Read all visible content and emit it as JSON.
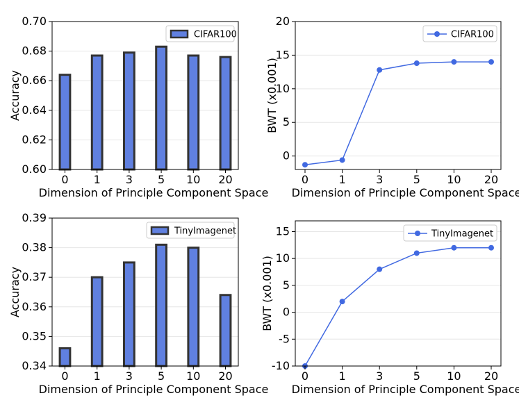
{
  "colors": {
    "fill": "#6080e0",
    "edge": "#333333",
    "line": "#4169e1",
    "grid": "#e6e6e6"
  },
  "chart_data": [
    {
      "type": "bar",
      "categories": [
        "0",
        "1",
        "3",
        "5",
        "10",
        "20"
      ],
      "series": [
        {
          "name": "CIFAR100",
          "values": [
            0.664,
            0.677,
            0.679,
            0.683,
            0.677,
            0.676
          ]
        }
      ],
      "xlabel": "Dimension of Principle Component Space",
      "ylabel": "Accuracy",
      "ylim": [
        0.6,
        0.7
      ],
      "yticks": [
        0.6,
        0.62,
        0.64,
        0.66,
        0.68,
        0.7
      ],
      "ytick_labels": [
        "0.60",
        "0.62",
        "0.64",
        "0.66",
        "0.68",
        "0.70"
      ],
      "legend": "top-right"
    },
    {
      "type": "line",
      "categories": [
        "0",
        "1",
        "3",
        "5",
        "10",
        "20"
      ],
      "series": [
        {
          "name": "CIFAR100",
          "values": [
            -1.3,
            -0.6,
            12.8,
            13.8,
            14.0,
            14.0
          ]
        }
      ],
      "xlabel": "Dimension of Principle Component Space",
      "ylabel": "BWT (x0.001)",
      "ylim": [
        -2,
        20
      ],
      "yticks": [
        0,
        5,
        10,
        15,
        20
      ],
      "ytick_labels": [
        "0",
        "5",
        "10",
        "15",
        "20"
      ],
      "legend": "top-right"
    },
    {
      "type": "bar",
      "categories": [
        "0",
        "1",
        "3",
        "5",
        "10",
        "20"
      ],
      "series": [
        {
          "name": "TinyImagenet",
          "values": [
            0.346,
            0.37,
            0.375,
            0.381,
            0.38,
            0.364
          ]
        }
      ],
      "xlabel": "Dimension of Principle Component Space",
      "ylabel": "Accuracy",
      "ylim": [
        0.34,
        0.39
      ],
      "yticks": [
        0.34,
        0.35,
        0.36,
        0.37,
        0.38,
        0.39
      ],
      "ytick_labels": [
        "0.34",
        "0.35",
        "0.36",
        "0.37",
        "0.38",
        "0.39"
      ],
      "legend": "top-right"
    },
    {
      "type": "line",
      "categories": [
        "0",
        "1",
        "3",
        "5",
        "10",
        "20"
      ],
      "series": [
        {
          "name": "TinyImagenet",
          "values": [
            -10,
            2,
            8,
            11,
            12,
            12
          ]
        }
      ],
      "xlabel": "Dimension of Principle Component Space",
      "ylabel": "BWT (x0.001)",
      "ylim": [
        -10,
        17
      ],
      "yticks": [
        -10,
        -5,
        0,
        5,
        10,
        15
      ],
      "ytick_labels": [
        "-10",
        "-5",
        "0",
        "5",
        "10",
        "15"
      ],
      "legend": "top-right"
    }
  ]
}
